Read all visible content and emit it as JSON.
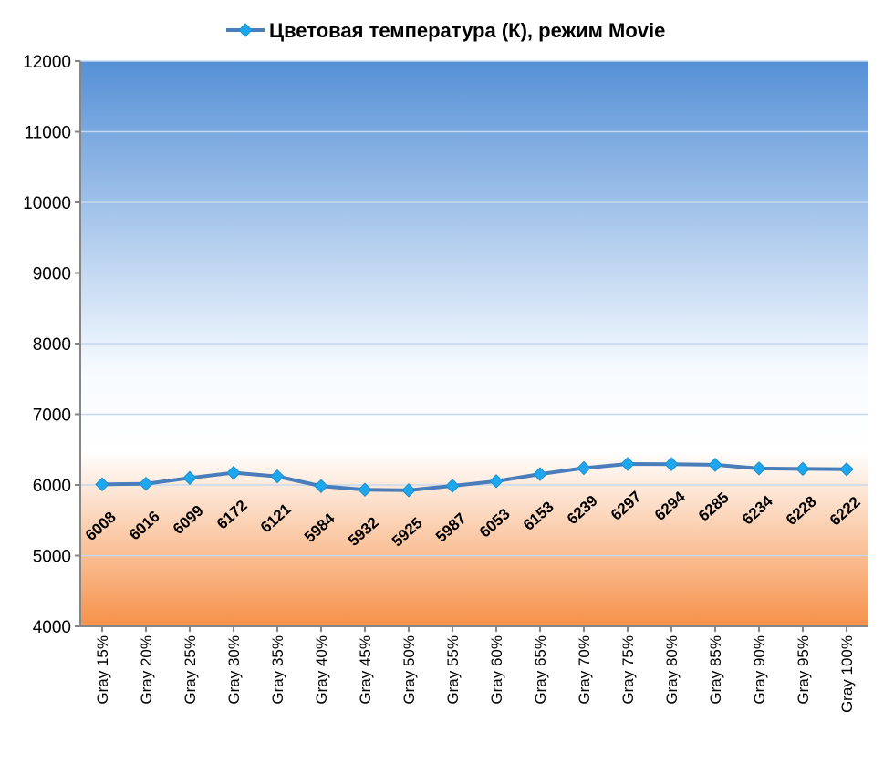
{
  "chart_data": {
    "type": "line",
    "title": "Цветовая температура (К), режим Movie",
    "legend": {
      "label": "Цветовая температура (К), режим Movie",
      "placement": "top"
    },
    "xlabel": "",
    "ylabel": "",
    "ylim": [
      4000,
      12000
    ],
    "yticks": [
      4000,
      5000,
      6000,
      7000,
      8000,
      9000,
      10000,
      11000,
      12000
    ],
    "grid": true,
    "categories": [
      "Gray 15%",
      "Gray 20%",
      "Gray 25%",
      "Gray 30%",
      "Gray 35%",
      "Gray 40%",
      "Gray 45%",
      "Gray 50%",
      "Gray 55%",
      "Gray 60%",
      "Gray 65%",
      "Gray 70%",
      "Gray 75%",
      "Gray 80%",
      "Gray 85%",
      "Gray 90%",
      "Gray 95%",
      "Gray 100%"
    ],
    "series": [
      {
        "name": "Цветовая температура (К), режим Movie",
        "values": [
          6008,
          6016,
          6099,
          6172,
          6121,
          5984,
          5932,
          5925,
          5987,
          6053,
          6153,
          6239,
          6297,
          6294,
          6285,
          6234,
          6228,
          6222
        ],
        "line_color": "#4a7ebb",
        "marker_color": "#1ea7ec"
      }
    ],
    "colors": {
      "bg_top": "#5590d6",
      "bg_mid": "#ffffff",
      "bg_bottom": "#f6914a",
      "grid": "#c6d9f0",
      "axis": "#868686"
    }
  }
}
